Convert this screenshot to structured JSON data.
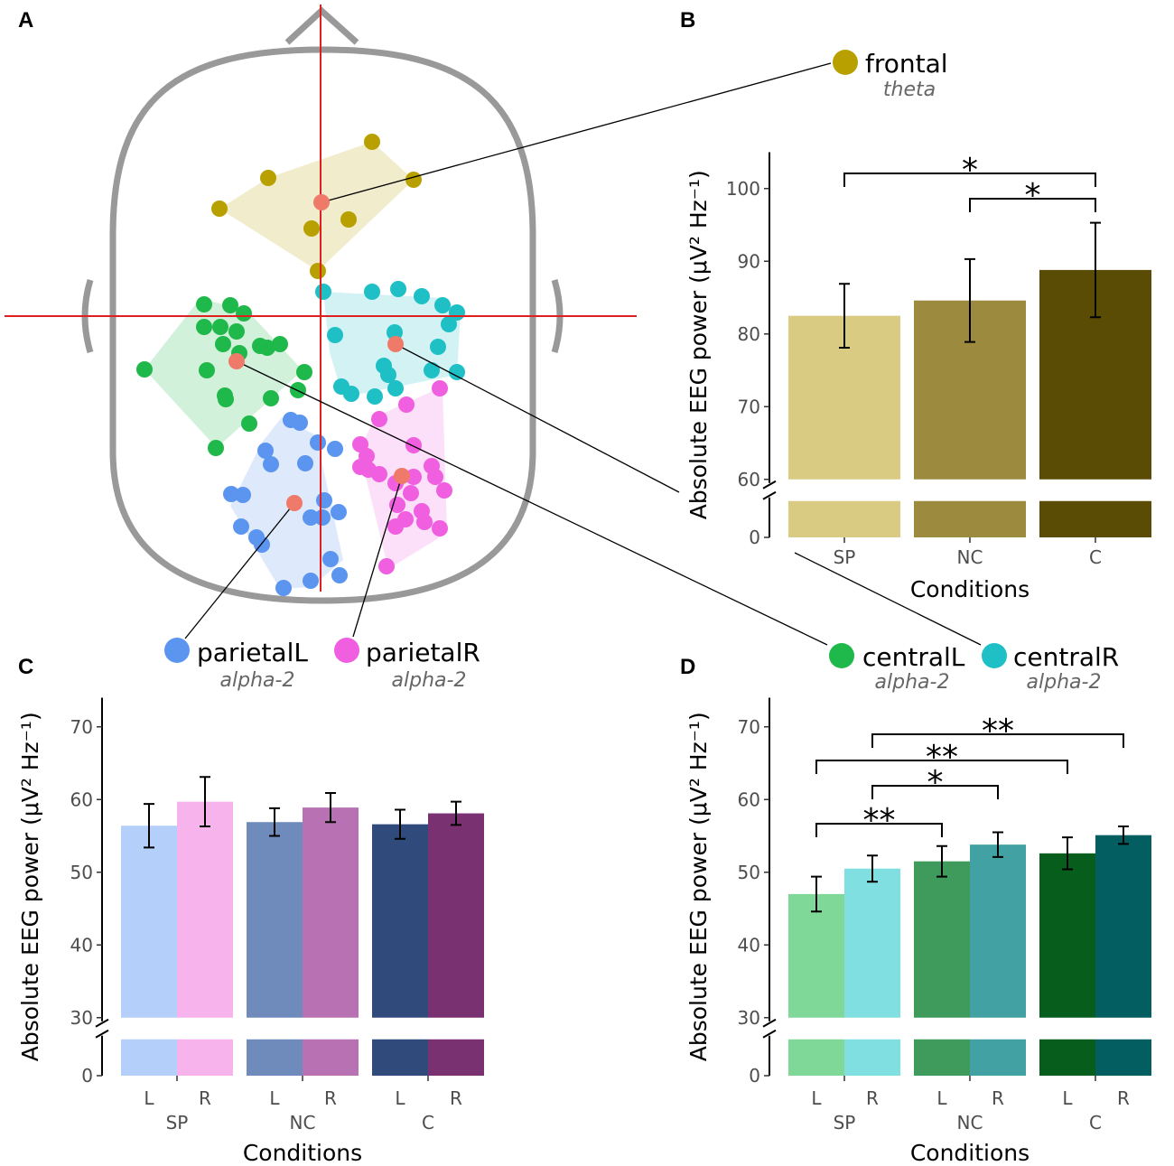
{
  "head_map": {
    "panel": "A",
    "regions": [
      {
        "name": "frontal",
        "band": "theta",
        "color": "#b8a000"
      },
      {
        "name": "centralL",
        "band": "alpha-2",
        "color": "#1fb84a"
      },
      {
        "name": "centralR",
        "band": "alpha-2",
        "color": "#1fbfc6"
      },
      {
        "name": "parietalL",
        "band": "alpha-2",
        "color": "#5b95ef"
      },
      {
        "name": "parietalR",
        "band": "alpha-2",
        "color": "#ef5fe0"
      }
    ]
  },
  "chart_data": [
    {
      "panel": "B",
      "type": "bar",
      "ylabel": "Absolute EEG power (μV² Hz⁻¹)",
      "xlabel": "Conditions",
      "categories": [
        "SP",
        "NC",
        "C"
      ],
      "values": [
        82.5,
        84.6,
        88.8
      ],
      "errors": [
        4.4,
        5.7,
        6.5
      ],
      "colors": [
        "#d9cb81",
        "#9c8b3f",
        "#5b4c05"
      ],
      "ylim": [
        0,
        105
      ],
      "axis_break": [
        5,
        60
      ],
      "yticks": [
        0,
        60,
        70,
        80,
        90,
        100
      ],
      "significance": [
        {
          "from": 0,
          "to": 2,
          "label": "*"
        },
        {
          "from": 1,
          "to": 2,
          "label": "*"
        }
      ]
    },
    {
      "panel": "C",
      "type": "grouped_bar",
      "ylabel": "Absolute EEG power (μV² Hz⁻¹)",
      "xlabel": "Conditions",
      "categories": [
        "SP",
        "NC",
        "C"
      ],
      "series": [
        {
          "name": "L",
          "colors": [
            "#b3cffa",
            "#6f8bbc",
            "#304a7c"
          ],
          "values": [
            56.4,
            56.9,
            56.6
          ],
          "errors": [
            3.0,
            1.9,
            2.0
          ]
        },
        {
          "name": "R",
          "colors": [
            "#f7b3eb",
            "#b871b2",
            "#7a3171"
          ],
          "values": [
            59.7,
            58.9,
            58.1
          ],
          "errors": [
            3.4,
            2.0,
            1.6
          ]
        }
      ],
      "ylim": [
        0,
        74
      ],
      "axis_break": [
        5,
        30
      ],
      "yticks": [
        0,
        30,
        40,
        50,
        60,
        70
      ],
      "significance": []
    },
    {
      "panel": "D",
      "type": "grouped_bar",
      "ylabel": "Absolute EEG power (μV² Hz⁻¹)",
      "xlabel": "Conditions",
      "categories": [
        "SP",
        "NC",
        "C"
      ],
      "series": [
        {
          "name": "L",
          "colors": [
            "#7fd897",
            "#3e9b5c",
            "#075d1c"
          ],
          "values": [
            47.0,
            51.5,
            52.6
          ],
          "errors": [
            2.4,
            2.1,
            2.2
          ]
        },
        {
          "name": "R",
          "colors": [
            "#80dfe1",
            "#42a1a3",
            "#025e60"
          ],
          "values": [
            50.5,
            53.8,
            55.1
          ],
          "errors": [
            1.8,
            1.7,
            1.2
          ]
        }
      ],
      "ylim": [
        0,
        74
      ],
      "axis_break": [
        5,
        30
      ],
      "yticks": [
        0,
        30,
        40,
        50,
        60,
        70
      ],
      "significance": [
        {
          "from": 1,
          "to": 5,
          "label": "**"
        },
        {
          "from": 0,
          "to": 4,
          "label": "**"
        },
        {
          "from": 1,
          "to": 3,
          "label": "*"
        },
        {
          "from": 0,
          "to": 2,
          "label": "**"
        }
      ]
    }
  ]
}
